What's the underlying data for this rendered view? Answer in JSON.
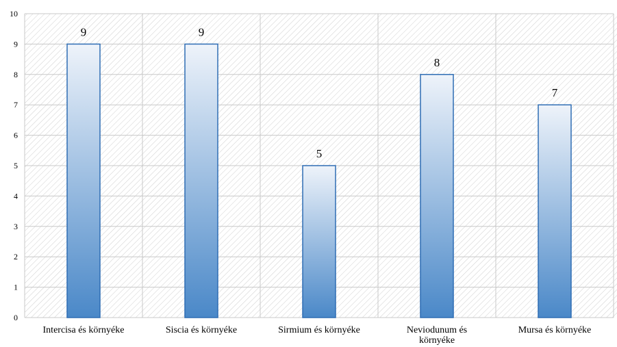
{
  "chart_data": {
    "type": "bar",
    "categories": [
      [
        "Intercisa és környéke"
      ],
      [
        "Siscia és környéke"
      ],
      [
        "Sirmium és környéke"
      ],
      [
        "Neviodunum és",
        "környéke"
      ],
      [
        "Mursa és környéke"
      ]
    ],
    "values": [
      9,
      9,
      5,
      8,
      7
    ],
    "title": "",
    "xlabel": "",
    "ylabel": "",
    "ylim": [
      0,
      10
    ],
    "yticks": [
      0,
      1,
      2,
      3,
      4,
      5,
      6,
      7,
      8,
      9,
      10
    ],
    "grid": true,
    "legend": "none",
    "colors": {
      "bar_top": "#eef3fa",
      "bar_bottom": "#4a88c8",
      "bar_border": "#2e6db4",
      "grid": "#c8c8c8",
      "hatch": "#cfcfcf"
    }
  }
}
